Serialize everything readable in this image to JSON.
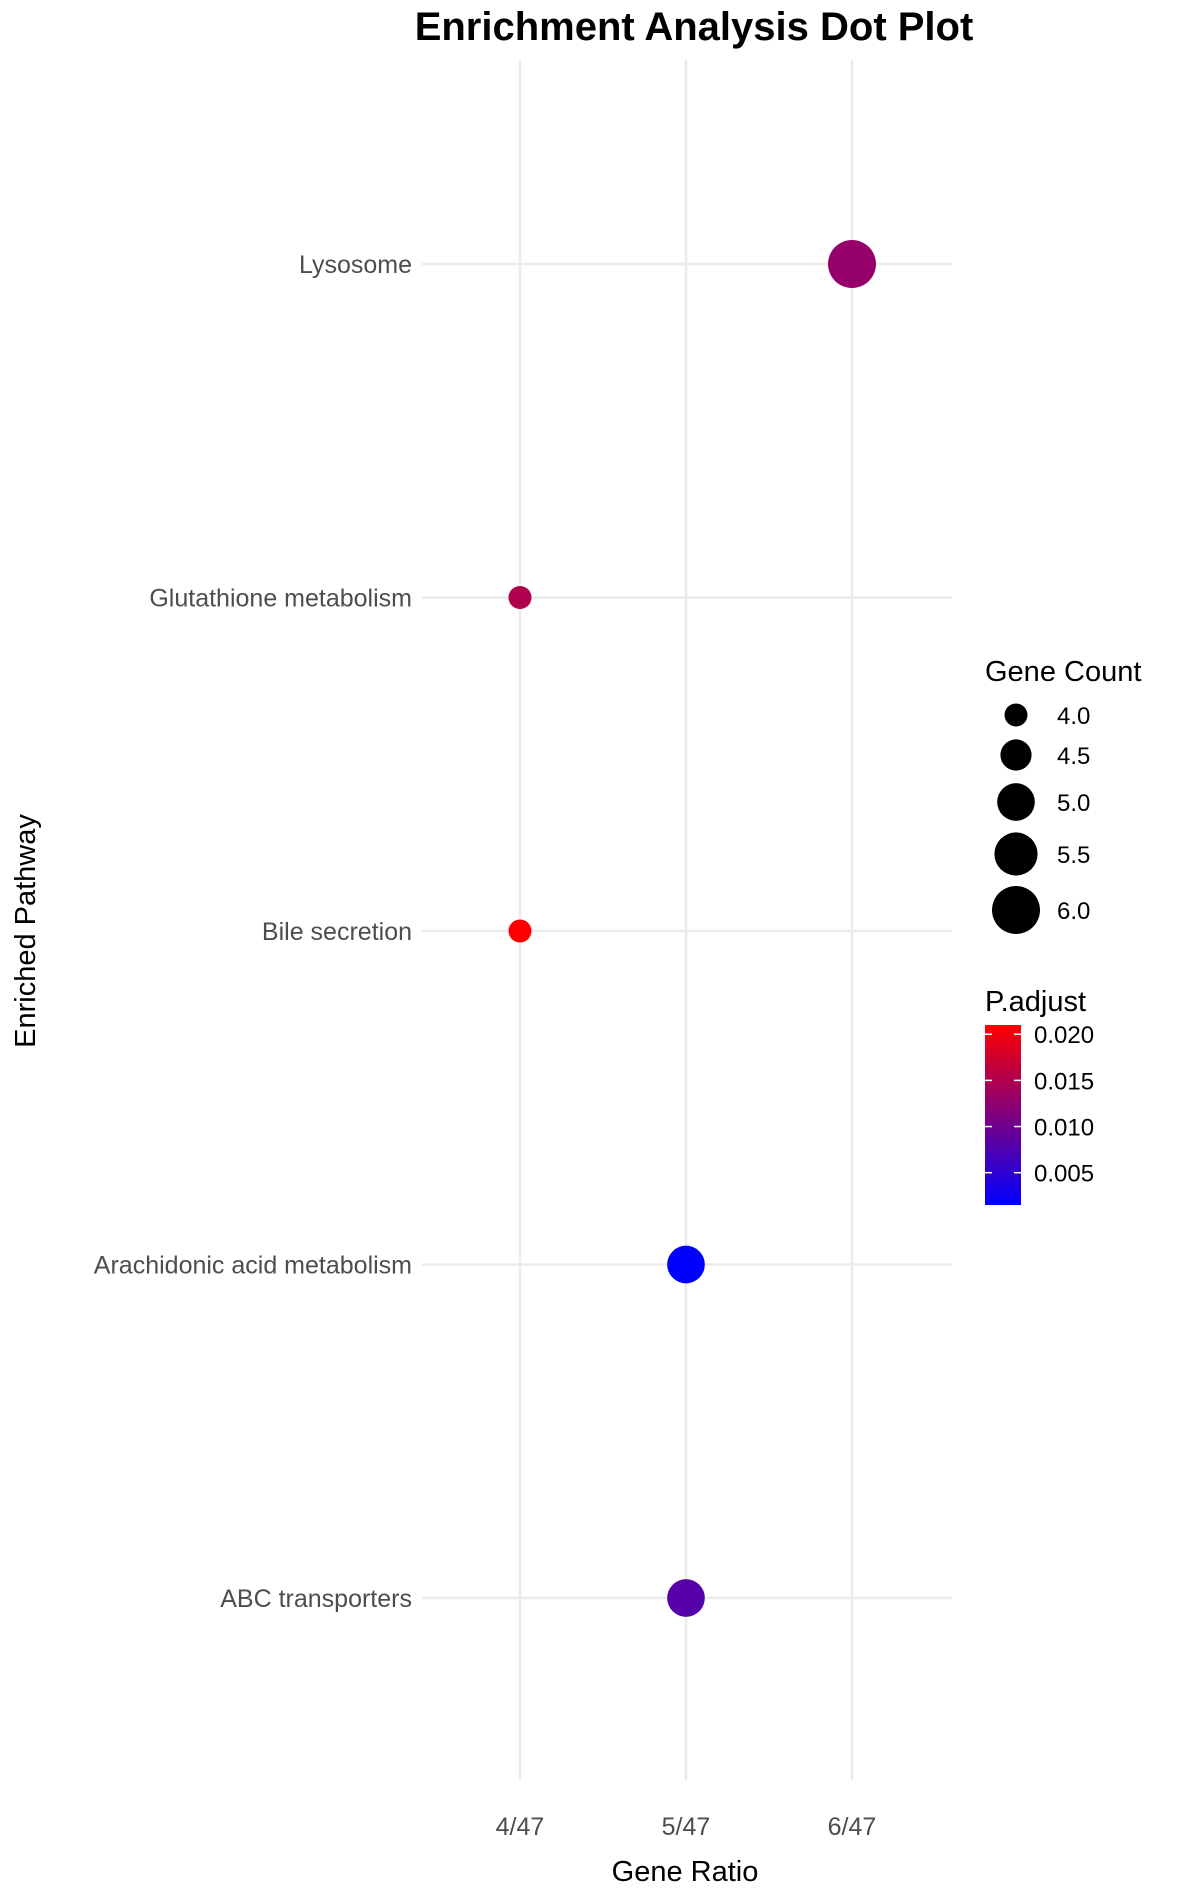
{
  "chart_data": {
    "type": "scatter",
    "title": "Enrichment Analysis Dot Plot",
    "xlabel": "Gene Ratio",
    "ylabel": "Enriched Pathway",
    "x_categories": [
      "4/47",
      "5/47",
      "6/47"
    ],
    "y_categories": [
      "ABC transporters",
      "Arachidonic acid metabolism",
      "Bile secretion",
      "Glutathione metabolism",
      "Lysosome"
    ],
    "points": [
      {
        "pathway": "Lysosome",
        "gene_ratio": "6/47",
        "count": 6,
        "p_adjust": 0.013
      },
      {
        "pathway": "Glutathione metabolism",
        "gene_ratio": "4/47",
        "count": 4,
        "p_adjust": 0.015
      },
      {
        "pathway": "Bile secretion",
        "gene_ratio": "4/47",
        "count": 4,
        "p_adjust": 0.021
      },
      {
        "pathway": "Arachidonic acid metabolism",
        "gene_ratio": "5/47",
        "count": 5,
        "p_adjust": 0.0015
      },
      {
        "pathway": "ABC transporters",
        "gene_ratio": "5/47",
        "count": 5,
        "p_adjust": 0.008
      }
    ],
    "grid": true,
    "legend_size": {
      "title": "Gene Count",
      "labels": [
        "4.0",
        "4.5",
        "5.0",
        "5.5",
        "6.0"
      ],
      "values": [
        4.0,
        4.5,
        5.0,
        5.5,
        6.0
      ]
    },
    "legend_color": {
      "title": "P.adjust",
      "labels": [
        "0.020",
        "0.015",
        "0.010",
        "0.005"
      ],
      "values": [
        0.02,
        0.015,
        0.01,
        0.005
      ],
      "range": [
        0.0015,
        0.021
      ],
      "low_color": "#0000ff",
      "high_color": "#ff0000"
    },
    "legend_position": "right"
  }
}
